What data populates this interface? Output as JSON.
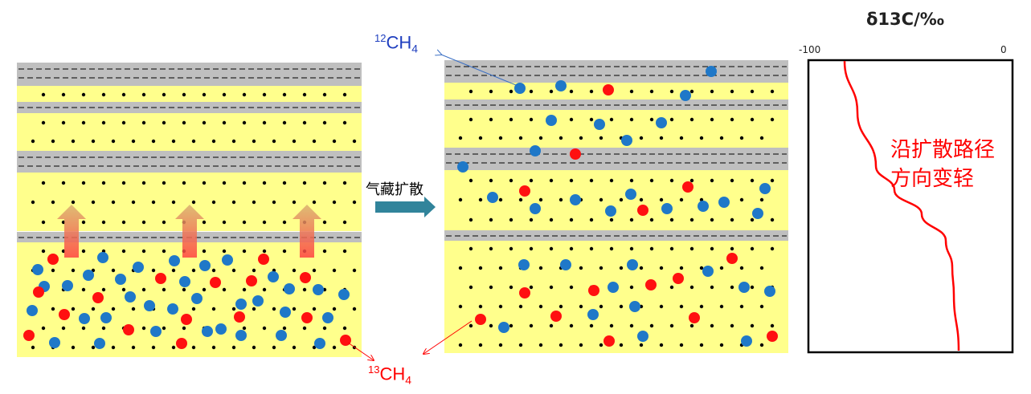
{
  "labels": {
    "ch4_12": {
      "sup": "12",
      "main": "CH",
      "sub": "4"
    },
    "ch4_13": {
      "sup": "13",
      "main": "CH",
      "sub": "4"
    },
    "process": "气藏扩散"
  },
  "chart": {
    "title": "δ13C/‰",
    "x_ticks": [
      "-100",
      "0"
    ],
    "xlim": [
      -100,
      0
    ],
    "annotation_line1": "沿扩散路径",
    "annotation_line2": "方向变轻"
  },
  "colors": {
    "shale": "#bfbfbf",
    "sand": "#ffff8c",
    "ch4_12": "#1f78c8",
    "ch4_13": "#ff1010",
    "curve": "#ff0000",
    "arrow": "#31849b",
    "label_12": "#1f3fbf",
    "label_13": "#ff0000"
  }
}
